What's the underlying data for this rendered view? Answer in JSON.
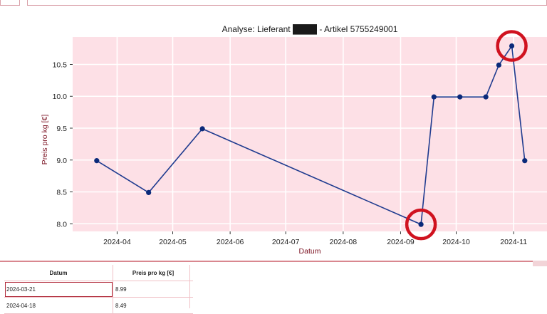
{
  "chart_data": {
    "type": "line",
    "title": "Analyse: Lieferant ████ - Artikel 5755249001",
    "xlabel": "Datum",
    "ylabel": "Preis pro kg [€]",
    "x_ticks": [
      "2024-04",
      "2024-05",
      "2024-06",
      "2024-07",
      "2024-08",
      "2024-09",
      "2024-10",
      "2024-11"
    ],
    "y_ticks": [
      "8.0",
      "8.5",
      "9.0",
      "9.5",
      "10.0",
      "10.5"
    ],
    "ylim": [
      7.88,
      10.93
    ],
    "xlim": [
      "2024-03-08",
      "2024-11-19"
    ],
    "grid": true,
    "series": [
      {
        "color": "#1f3b8f",
        "points": [
          {
            "x": "2024-03-21",
            "y": 8.99
          },
          {
            "x": "2024-04-18",
            "y": 8.49
          },
          {
            "x": "2024-05-17",
            "y": 9.49
          },
          {
            "x": "2024-09-12",
            "y": 7.99
          },
          {
            "x": "2024-09-19",
            "y": 9.99
          },
          {
            "x": "2024-10-03",
            "y": 9.99
          },
          {
            "x": "2024-10-17",
            "y": 9.99
          },
          {
            "x": "2024-10-24",
            "y": 10.49
          },
          {
            "x": "2024-10-31",
            "y": 10.79
          },
          {
            "x": "2024-11-07",
            "y": 8.99
          }
        ]
      }
    ],
    "highlighted_points": [
      "2024-09-12",
      "2024-10-31"
    ],
    "colors": {
      "plot_bg": "#fde0e6",
      "line": "#1f3b8f",
      "highlight": "#d0121f"
    }
  },
  "table": {
    "headers": [
      "Datum",
      "Preis pro kg [€]"
    ],
    "rows": [
      [
        "2024-03-21",
        "8.99"
      ],
      [
        "2024-04-18",
        "8.49"
      ]
    ]
  }
}
